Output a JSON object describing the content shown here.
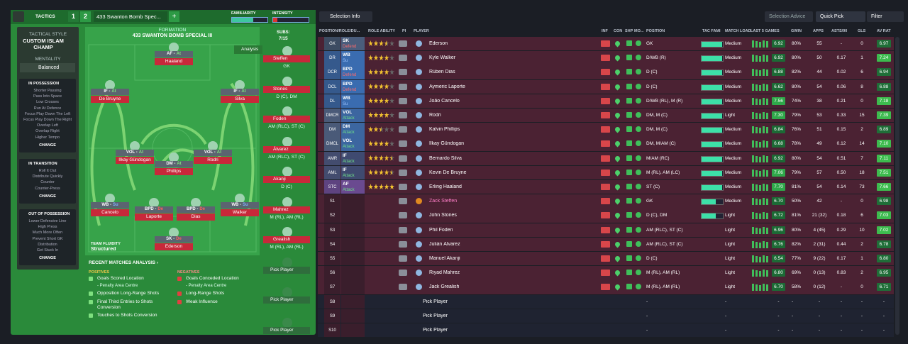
{
  "tactics_bar": {
    "label": "TACTICS",
    "slots": [
      "1",
      "2"
    ],
    "tactic_name": "433 Swanton Bomb Spec...",
    "add": "+",
    "familiarity": "FAMILIARITY",
    "intensity": "INTENSITY"
  },
  "sidebar": {
    "style_label": "TACTICAL STYLE",
    "style": "CUSTOM ISLAM CHAMP",
    "mentality_label": "MENTALITY",
    "mentality": "Balanced",
    "sections": [
      {
        "title": "IN POSSESSION",
        "items": [
          "Shorter Passing",
          "Pass Into Space",
          "Low Crosses",
          "Run At Defence",
          "Focus Play Down The Left",
          "Focus Play Down The Right",
          "Overlap Left",
          "Overlap Right",
          "Higher Tempo"
        ],
        "button": "CHANGE"
      },
      {
        "title": "IN TRANSITION",
        "items": [
          "Roll It Out",
          "Distribute Quickly",
          "Counter",
          "Counter-Press"
        ],
        "button": "CHANGE"
      },
      {
        "title": "OUT OF POSSESSION",
        "items": [
          "Lower Defensive Line",
          "High Press",
          "Much More Often",
          "Prevent Short GK",
          "Distribution",
          "Get Stuck In"
        ],
        "button": "CHANGE"
      }
    ]
  },
  "pitch": {
    "formation_label": "FORMATION",
    "formation": "433 SWANTON BOMB SPECIAL III",
    "analysis": "Analysis",
    "fluidity_label": "TEAM FLUIDITY",
    "fluidity": "Structured",
    "players": [
      {
        "role": "AF -",
        "duty": "At",
        "name": "Haaland"
      },
      {
        "role": "IF -",
        "duty": "At",
        "name": "De Bruyne"
      },
      {
        "role": "IF -",
        "duty": "At",
        "name": "Silva"
      },
      {
        "role": "VOL -",
        "duty": "At",
        "name": "Ilkay Gündogan"
      },
      {
        "role": "VOL -",
        "duty": "At",
        "name": "Rodri"
      },
      {
        "role": "DM -",
        "duty": "At",
        "name": "Phillips"
      },
      {
        "role": "WB -",
        "duty": "Su",
        "name": "Cancelo"
      },
      {
        "role": "BPD -",
        "duty": "De",
        "name": "Laporte"
      },
      {
        "role": "BPD -",
        "duty": "De",
        "name": "Dias"
      },
      {
        "role": "WB -",
        "duty": "Su",
        "name": "Walker"
      },
      {
        "role": "SK -",
        "duty": "De",
        "name": "Ederson"
      }
    ]
  },
  "subs": {
    "label": "SUBS:",
    "count": "7/15",
    "players": [
      {
        "name": "Steffen",
        "positions": "GK"
      },
      {
        "name": "Stones",
        "positions": "D (C), DM"
      },
      {
        "name": "Foden",
        "positions": "AM (RLC), ST (C)"
      },
      {
        "name": "Álvarez",
        "positions": "AM (RLC), ST (C)"
      },
      {
        "name": "Akanji",
        "positions": "D (C)"
      },
      {
        "name": "Mahrez",
        "positions": "M (RL), AM (RL)"
      },
      {
        "name": "Grealish",
        "positions": "M (RL), AM (RL)"
      },
      {
        "name": "Pick Player"
      },
      {
        "name": "Pick Player"
      },
      {
        "name": "Pick Player"
      }
    ]
  },
  "analysis": {
    "title": "RECENT MATCHES ANALYSIS ›",
    "positives_label": "POSITIVES",
    "positives": [
      {
        "text": "Goals Scored Location",
        "detail": "- Penalty Area Centre"
      },
      {
        "text": "Opposition Long-Range Shots"
      },
      {
        "text": "Final Third Entries to Shots Conversion"
      },
      {
        "text": "Touches to Shots Conversion"
      }
    ],
    "negatives_label": "NEGATIVES",
    "negatives": [
      {
        "text": "Goals Conceded Location",
        "detail": "- Penalty Area Centre"
      },
      {
        "text": "Long-Range Shots"
      },
      {
        "text": "Weak Influence"
      }
    ]
  },
  "selection": {
    "buttons": [
      "Selection Info",
      "Selection Advice",
      "Quick Pick",
      "Filter"
    ],
    "columns": [
      "POSITION/ROLE/DU...",
      "ROLE ABILITY",
      "PI",
      "PLAYER",
      "INF",
      "CON",
      "SHP",
      "MO...",
      "POSITION",
      "TAC FAMI",
      "MATCH LOAD",
      "LAST 5 GAMES",
      "GWIN",
      "APPS",
      "ASTS/90",
      "GLS",
      "AV RAT"
    ],
    "rows": [
      {
        "pos": "GK",
        "role": "SK",
        "duty": "Defend",
        "ability": 3.5,
        "player": "Ederson",
        "position": "GK",
        "load": "Medium",
        "last5": "6.92",
        "gwin": "80%",
        "apps": "55",
        "asts": "-",
        "gls": "0",
        "avrat": "6.97"
      },
      {
        "pos": "DR",
        "role": "WB",
        "duty": "Su",
        "ability": 4,
        "player": "Kyle Walker",
        "position": "D/WB (R)",
        "load": "Medium",
        "last5": "6.92",
        "gwin": "80%",
        "apps": "50",
        "asts": "0.17",
        "gls": "1",
        "avrat": "7.24"
      },
      {
        "pos": "DCR",
        "role": "BPD",
        "duty": "Defend",
        "ability": 4,
        "player": "Rúben Dias",
        "position": "D (C)",
        "load": "Medium",
        "last5": "6.88",
        "gwin": "82%",
        "apps": "44",
        "asts": "0.02",
        "gls": "6",
        "avrat": "6.94"
      },
      {
        "pos": "DCL",
        "role": "BPD",
        "duty": "Defend",
        "ability": 4,
        "player": "Aymeric Laporte",
        "position": "D (C)",
        "load": "Medium",
        "last5": "6.62",
        "gwin": "80%",
        "apps": "54",
        "asts": "0.06",
        "gls": "8",
        "avrat": "6.88"
      },
      {
        "pos": "DL",
        "role": "WB",
        "duty": "Su",
        "ability": 4,
        "player": "João Cancelo",
        "position": "D/WB (RL), M (R)",
        "load": "Medium",
        "last5": "7.56",
        "gwin": "74%",
        "apps": "38",
        "asts": "0.21",
        "gls": "0",
        "avrat": "7.18"
      },
      {
        "pos": "DMCR",
        "role": "VOL",
        "duty": "Attack",
        "ability": 4,
        "player": "Rodri",
        "position": "DM, M (C)",
        "load": "Light",
        "last5": "7.30",
        "gwin": "79%",
        "apps": "53",
        "asts": "0.33",
        "gls": "15",
        "avrat": "7.39"
      },
      {
        "pos": "DM",
        "role": "DM",
        "duty": "Attack",
        "ability": 2.5,
        "player": "Kalvin Phillips",
        "position": "DM, M (C)",
        "load": "Medium",
        "last5": "6.84",
        "gwin": "76%",
        "apps": "51",
        "asts": "0.15",
        "gls": "2",
        "avrat": "6.89"
      },
      {
        "pos": "DMCL",
        "role": "VOL",
        "duty": "Attack",
        "ability": 4,
        "player": "İlkay Gündogan",
        "position": "DM, M/AM (C)",
        "load": "Medium",
        "last5": "6.68",
        "gwin": "78%",
        "apps": "49",
        "asts": "0.12",
        "gls": "14",
        "avrat": "7.10"
      },
      {
        "pos": "AMR",
        "role": "IF",
        "duty": "Attack",
        "ability": 4.5,
        "player": "Bernardo Silva",
        "position": "M/AM (RC)",
        "load": "Medium",
        "last5": "6.92",
        "gwin": "80%",
        "apps": "54",
        "asts": "0.51",
        "gls": "7",
        "avrat": "7.11"
      },
      {
        "pos": "AML",
        "role": "IF",
        "duty": "Attack",
        "ability": 4.5,
        "player": "Kevin De Bruyne",
        "position": "M (RL), AM (LC)",
        "load": "Medium",
        "last5": "7.06",
        "gwin": "79%",
        "apps": "57",
        "asts": "0.50",
        "gls": "18",
        "avrat": "7.51"
      },
      {
        "pos": "STC",
        "role": "AF",
        "duty": "Attack",
        "ability": 5,
        "player": "Erling Haaland",
        "position": "ST (C)",
        "load": "Medium",
        "last5": "7.70",
        "gwin": "81%",
        "apps": "54",
        "asts": "0.14",
        "gls": "73",
        "avrat": "7.66"
      },
      {
        "pos": "S1",
        "player": "Zack Steffen",
        "position": "GK",
        "load": "Medium",
        "last5": "6.70",
        "gwin": "50%",
        "apps": "42",
        "asts": "-",
        "gls": "0",
        "avrat": "6.98"
      },
      {
        "pos": "S2",
        "player": "John Stones",
        "position": "D (C), DM",
        "load": "Light",
        "last5": "6.72",
        "gwin": "81%",
        "apps": "21 (32)",
        "asts": "0.18",
        "gls": "6",
        "avrat": "7.03"
      },
      {
        "pos": "S3",
        "player": "Phil Foden",
        "position": "AM (RLC), ST (C)",
        "load": "Light",
        "last5": "6.96",
        "gwin": "80%",
        "apps": "4 (45)",
        "asts": "0.29",
        "gls": "10",
        "avrat": "7.02"
      },
      {
        "pos": "S4",
        "player": "Julián Álvarez",
        "position": "AM (RLC), ST (C)",
        "load": "Light",
        "last5": "6.76",
        "gwin": "82%",
        "apps": "2 (31)",
        "asts": "0.44",
        "gls": "2",
        "avrat": "6.78"
      },
      {
        "pos": "S5",
        "player": "Manuel Akanji",
        "position": "D (C)",
        "load": "Light",
        "last5": "6.54",
        "gwin": "77%",
        "apps": "9 (22)",
        "asts": "0.17",
        "gls": "1",
        "avrat": "6.80"
      },
      {
        "pos": "S6",
        "player": "Riyad Mahrez",
        "position": "M (RL), AM (RL)",
        "load": "Light",
        "last5": "6.80",
        "gwin": "69%",
        "apps": "0 (13)",
        "asts": "0.83",
        "gls": "2",
        "avrat": "6.95"
      },
      {
        "pos": "S7",
        "player": "Jack Grealish",
        "position": "M (RL), AM (RL)",
        "load": "Light",
        "last5": "6.70",
        "gwin": "58%",
        "apps": "0 (12)",
        "asts": "-",
        "gls": "0",
        "avrat": "6.71"
      },
      {
        "pos": "S8",
        "player": "Pick Player",
        "position": "-",
        "load": "-",
        "last5": "-",
        "gwin": "-",
        "apps": "-",
        "asts": "-",
        "gls": "-",
        "avrat": "-"
      },
      {
        "pos": "S9",
        "player": "Pick Player",
        "position": "-",
        "load": "-",
        "last5": "-",
        "gwin": "-",
        "apps": "-",
        "asts": "-",
        "gls": "-",
        "avrat": "-"
      },
      {
        "pos": "S10",
        "player": "Pick Player",
        "position": "-",
        "load": "-",
        "last5": "-",
        "gwin": "-",
        "apps": "-",
        "asts": "-",
        "gls": "-",
        "avrat": "-"
      }
    ]
  }
}
